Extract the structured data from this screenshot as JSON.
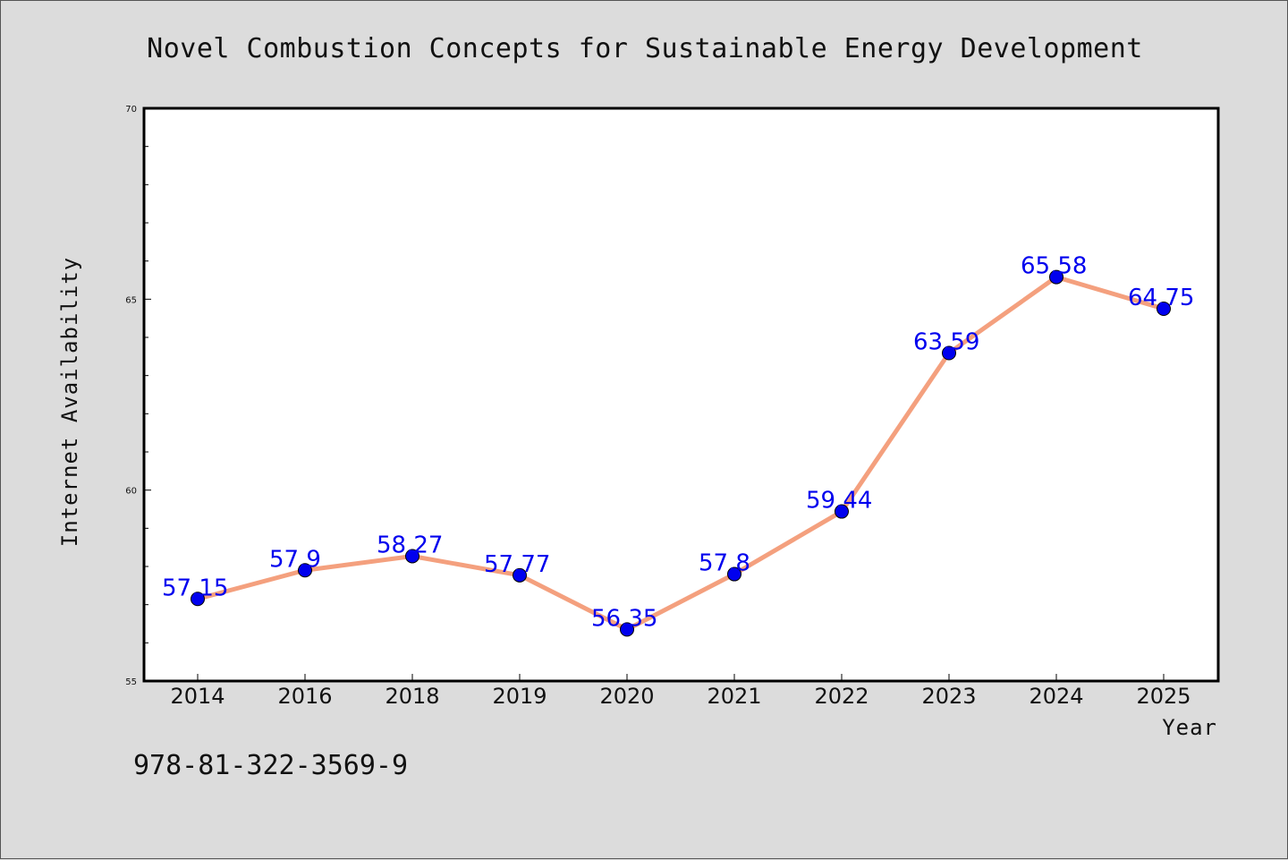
{
  "chart_data": {
    "type": "line",
    "title": "Novel Combustion Concepts for Sustainable Energy Development",
    "xlabel": "Year",
    "ylabel": "Internet Availability",
    "categories": [
      "2014",
      "2016",
      "2018",
      "2019",
      "2020",
      "2021",
      "2022",
      "2023",
      "2024",
      "2025"
    ],
    "values": [
      57.15,
      57.9,
      58.27,
      57.77,
      56.35,
      57.8,
      59.44,
      63.59,
      65.58,
      64.75
    ],
    "data_labels": [
      "57.15",
      "57.9",
      "58.27",
      "57.77",
      "56.35",
      "57.8",
      "59.44",
      "63.59",
      "65.58",
      "64.75"
    ],
    "ylim": [
      55,
      70
    ],
    "y_ticks": [
      "55",
      "60",
      "65",
      "70"
    ],
    "grid": false,
    "line_color": "#f4a07e",
    "marker_color": "#0000ee",
    "label_color": "#0000ee"
  },
  "footer_text": "978-81-322-3569-9"
}
